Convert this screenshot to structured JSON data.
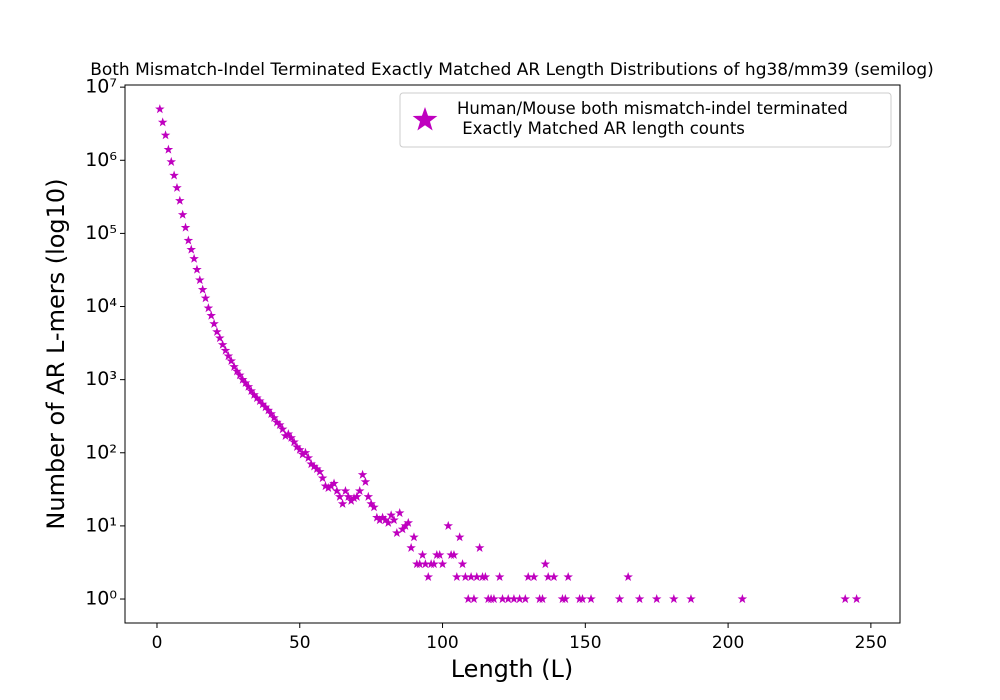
{
  "chart_data": {
    "type": "scatter",
    "title": "Both Mismatch-Indel Terminated Exactly Matched AR Length Distributions of hg38/mm39 (semilog)",
    "xlabel": "Length (L)",
    "ylabel": "Number of AR L-mers (log10)",
    "xlim": [
      -11.2,
      260.2
    ],
    "ylim": [
      0.47,
      10700000
    ],
    "log_y": true,
    "legend": "upper right",
    "xticks": [
      0,
      50,
      100,
      150,
      200,
      250
    ],
    "yticks": [
      {
        "value": 1,
        "label": "10⁰"
      },
      {
        "value": 10,
        "label": "10¹"
      },
      {
        "value": 100,
        "label": "10²"
      },
      {
        "value": 1000,
        "label": "10³"
      },
      {
        "value": 10000,
        "label": "10⁴"
      },
      {
        "value": 100000,
        "label": "10⁵"
      },
      {
        "value": 1000000,
        "label": "10⁶"
      },
      {
        "value": 10000000,
        "label": "10⁷"
      }
    ],
    "series": [
      {
        "name": "Human/Mouse both mismatch-indel terminated\n Exactly Matched AR length counts",
        "color": "#bf00bf",
        "x": [
          1,
          2,
          3,
          4,
          5,
          6,
          7,
          8,
          9,
          10,
          11,
          12,
          13,
          14,
          15,
          16,
          17,
          18,
          19,
          20,
          21,
          22,
          23,
          24,
          25,
          26,
          27,
          28,
          29,
          30,
          31,
          32,
          33,
          34,
          35,
          36,
          37,
          38,
          39,
          40,
          41,
          42,
          43,
          44,
          45,
          46,
          47,
          48,
          49,
          50,
          51,
          52,
          53,
          54,
          55,
          56,
          57,
          58,
          59,
          60,
          61,
          62,
          63,
          64,
          65,
          66,
          67,
          68,
          69,
          70,
          71,
          72,
          73,
          74,
          75,
          76,
          77,
          78,
          79,
          80,
          81,
          82,
          83,
          84,
          85,
          86,
          87,
          88,
          89,
          90,
          91,
          92,
          93,
          94,
          95,
          96,
          97,
          98,
          99,
          100,
          102,
          103,
          104,
          105,
          106,
          107,
          108,
          109,
          110,
          111,
          112,
          113,
          114,
          115,
          116,
          117,
          118,
          120,
          121,
          123,
          125,
          127,
          129,
          130,
          132,
          134,
          135,
          136,
          137,
          139,
          142,
          143,
          144,
          148,
          149,
          152,
          162,
          165,
          169,
          175,
          181,
          187,
          205,
          241,
          245
        ],
        "values": [
          5000000,
          3300000,
          2200000,
          1400000,
          950000,
          620000,
          420000,
          280000,
          180000,
          120000,
          80000,
          60000,
          45000,
          32000,
          23000,
          17000,
          13000,
          9500,
          7500,
          5800,
          4500,
          3700,
          3000,
          2500,
          2100,
          1800,
          1500,
          1300,
          1150,
          1000,
          900,
          800,
          700,
          620,
          560,
          510,
          460,
          420,
          380,
          340,
          300,
          260,
          240,
          210,
          170,
          180,
          160,
          140,
          120,
          110,
          95,
          100,
          85,
          70,
          65,
          60,
          55,
          45,
          35,
          33,
          35,
          38,
          30,
          25,
          20,
          30,
          25,
          22,
          24,
          25,
          30,
          50,
          40,
          25,
          20,
          18,
          13,
          12,
          13,
          12,
          11,
          14,
          12,
          8,
          15,
          9,
          10,
          11,
          5,
          7,
          3,
          3,
          4,
          3,
          2,
          3,
          3,
          4,
          4,
          3,
          10,
          4,
          4,
          2,
          7,
          3,
          2,
          1,
          2,
          1,
          2,
          5,
          2,
          2,
          1,
          1,
          1,
          2,
          1,
          1,
          1,
          1,
          1,
          2,
          2,
          1,
          1,
          3,
          2,
          2,
          1,
          1,
          2,
          1,
          1,
          1,
          1,
          2,
          1,
          1,
          1,
          1,
          1,
          1,
          1
        ]
      }
    ]
  }
}
